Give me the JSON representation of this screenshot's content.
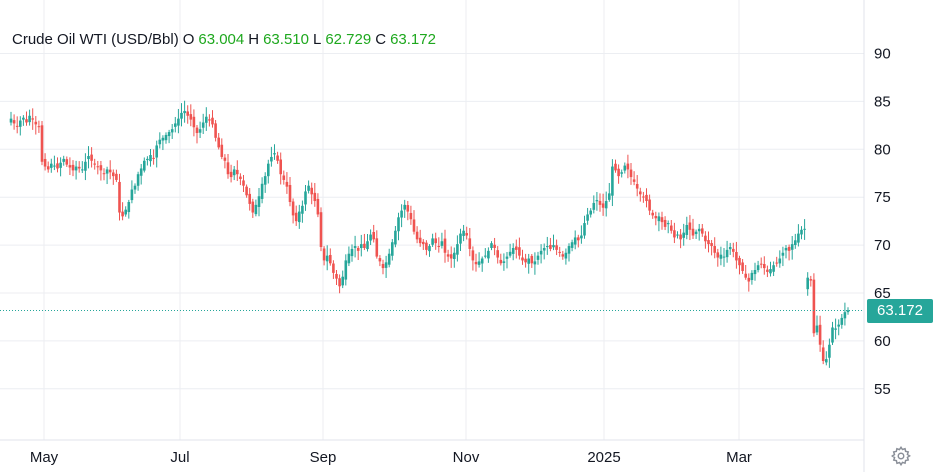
{
  "legend": {
    "symbol": "Crude Oil WTI (USD/Bbl)",
    "o_label": "O",
    "o_value": "63.004",
    "h_label": "H",
    "h_value": "63.510",
    "l_label": "L",
    "l_value": "62.729",
    "c_label": "C",
    "c_value": "63.172"
  },
  "last_price_label": "63.172",
  "colors": {
    "up": "#26a69a",
    "down": "#ef5350",
    "legend_value": "#1ea81e",
    "last_line": "#26a69a"
  },
  "settings_icon": "gear-icon",
  "chart_data": {
    "type": "candlestick",
    "title": "Crude Oil WTI (USD/Bbl)",
    "y_ticks": [
      55,
      60,
      65,
      70,
      75,
      80,
      85,
      90
    ],
    "x_ticks": [
      "May",
      "Jul",
      "Sep",
      "Nov",
      "2025",
      "Mar"
    ],
    "ylim": [
      50.5,
      94
    ],
    "grid": true,
    "last_price": 63.172,
    "series": [
      {
        "name": "Crude Oil WTI (USD/Bbl)",
        "close": [
          83.2,
          82.7,
          82.4,
          83.0,
          83.3,
          82.8,
          83.5,
          83.1,
          82.6,
          82.4,
          78.7,
          78.2,
          77.9,
          78.5,
          78.3,
          78.0,
          78.6,
          79.0,
          78.4,
          78.1,
          77.8,
          78.2,
          78.0,
          77.9,
          78.7,
          79.3,
          78.8,
          78.4,
          78.2,
          77.8,
          77.5,
          77.9,
          77.6,
          77.2,
          76.8,
          73.4,
          73.0,
          73.7,
          74.5,
          75.8,
          76.2,
          77.4,
          78.0,
          78.8,
          79.0,
          79.4,
          79.0,
          80.4,
          81.0,
          81.2,
          81.5,
          81.8,
          82.1,
          82.7,
          83.2,
          83.8,
          84.0,
          83.5,
          83.1,
          82.3,
          81.7,
          82.1,
          82.8,
          83.4,
          83.0,
          82.6,
          81.2,
          80.2,
          79.2,
          78.8,
          77.4,
          77.1,
          77.9,
          77.4,
          76.9,
          76.2,
          75.2,
          74.3,
          73.4,
          74.2,
          75.1,
          76.4,
          77.2,
          78.5,
          79.2,
          79.6,
          78.8,
          77.4,
          76.8,
          76.1,
          74.5,
          73.1,
          72.5,
          73.5,
          74.1,
          75.6,
          76.2,
          75.3,
          74.6,
          73.2,
          69.8,
          68.4,
          68.9,
          68.1,
          67.1,
          66.5,
          65.7,
          66.7,
          68.4,
          69.1,
          69.6,
          69.9,
          69.4,
          70.1,
          69.7,
          70.4,
          71.1,
          70.6,
          68.8,
          68.3,
          67.6,
          68.2,
          69.1,
          70.3,
          71.5,
          72.9,
          73.6,
          74.2,
          73.5,
          72.7,
          71.4,
          70.6,
          70.2,
          70.1,
          69.5,
          69.9,
          70.7,
          70.2,
          69.8,
          70.4,
          69.2,
          68.8,
          68.6,
          69.2,
          70.1,
          71.2,
          71.5,
          71.0,
          69.6,
          68.4,
          68.0,
          68.3,
          68.6,
          68.9,
          69.4,
          70.2,
          69.7,
          68.7,
          68.1,
          68.3,
          68.8,
          69.3,
          69.7,
          69.5,
          68.9,
          68.4,
          68.2,
          68.6,
          68.1,
          68.3,
          68.9,
          69.4,
          69.7,
          69.9,
          69.6,
          70.0,
          69.5,
          69.2,
          68.8,
          69.2,
          69.9,
          70.3,
          70.8,
          70.5,
          71.0,
          72.3,
          73.2,
          73.6,
          74.4,
          74.7,
          74.2,
          73.9,
          74.6,
          75.4,
          78.2,
          77.8,
          77.2,
          77.6,
          78.3,
          77.9,
          77.1,
          76.6,
          75.9,
          75.3,
          75.0,
          74.6,
          73.6,
          73.1,
          72.8,
          73.0,
          72.4,
          71.9,
          72.3,
          71.5,
          70.8,
          71.1,
          70.6,
          71.3,
          72.1,
          71.6,
          71.0,
          71.4,
          71.7,
          71.2,
          70.4,
          70.1,
          69.9,
          69.2,
          68.7,
          69.0,
          68.8,
          69.5,
          69.8,
          69.3,
          68.4,
          67.9,
          67.3,
          66.6,
          66.2,
          67.1,
          67.4,
          67.9,
          68.0,
          67.6,
          67.2,
          67.5,
          67.9,
          68.1,
          68.6,
          69.2,
          69.7,
          69.4,
          70.1,
          70.5,
          71.2,
          71.6,
          71.7,
          66.6,
          66.3,
          60.8,
          61.6,
          59.6,
          57.9,
          58.1,
          59.6,
          61.4,
          61.3,
          61.7,
          62.4,
          63.0,
          63.2
        ]
      }
    ],
    "gaps_after_index": [
      256
    ]
  }
}
